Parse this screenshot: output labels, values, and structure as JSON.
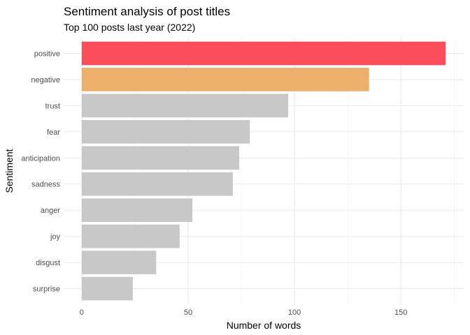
{
  "chart_data": {
    "type": "bar",
    "orientation": "horizontal",
    "title": "Sentiment analysis of post titles",
    "subtitle": "Top 100 posts last year (2022)",
    "xlabel": "Number of words",
    "ylabel": "Sentiment",
    "categories": [
      "positive",
      "negative",
      "trust",
      "fear",
      "anticipation",
      "sadness",
      "anger",
      "joy",
      "disgust",
      "surprise"
    ],
    "values": [
      171,
      135,
      97,
      79,
      74,
      71,
      52,
      46,
      35,
      24
    ],
    "colors": [
      "#fc4e5a",
      "#edb06b",
      "#c8c8c8",
      "#c8c8c8",
      "#c8c8c8",
      "#c8c8c8",
      "#c8c8c8",
      "#c8c8c8",
      "#c8c8c8",
      "#c8c8c8"
    ],
    "xlim": [
      -8.5,
      179.5
    ],
    "xticks": [
      0,
      50,
      100,
      150
    ],
    "xtick_labels": [
      "0",
      "50",
      "100",
      "150"
    ],
    "grid": true,
    "legend": "none"
  }
}
